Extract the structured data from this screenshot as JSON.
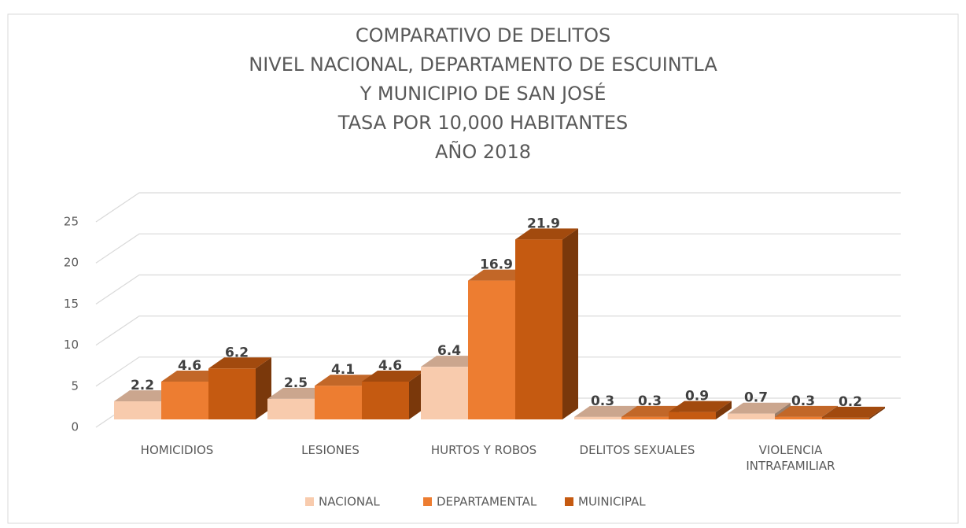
{
  "chart_data": {
    "type": "bar3d",
    "title": [
      "COMPARATIVO DE DELITOS",
      "NIVEL NACIONAL, DEPARTAMENTO DE ESCUINTLA",
      "Y MUNICIPIO DE SAN JOSÉ",
      "TASA POR 10,000 HABITANTES",
      "AÑO 2018"
    ],
    "categories": [
      "HOMICIDIOS",
      "LESIONES",
      "HURTOS Y ROBOS",
      "DELITOS SEXUALES",
      "VIOLENCIA INTRAFAMILIAR"
    ],
    "series": [
      {
        "name": "NACIONAL",
        "color": "#f8cbad",
        "values": [
          2.2,
          2.5,
          6.4,
          0.3,
          0.7
        ]
      },
      {
        "name": "DEPARTAMENTAL",
        "color": "#ed7d31",
        "values": [
          4.6,
          4.1,
          16.9,
          0.3,
          0.3
        ]
      },
      {
        "name": "MUINICIPAL",
        "color": "#c55a11",
        "values": [
          6.2,
          4.6,
          21.9,
          0.9,
          0.2
        ]
      }
    ],
    "ylim": [
      0,
      25
    ],
    "yticks": [
      0,
      5,
      10,
      15,
      20,
      25
    ],
    "grid": true,
    "legend": "bottom"
  }
}
